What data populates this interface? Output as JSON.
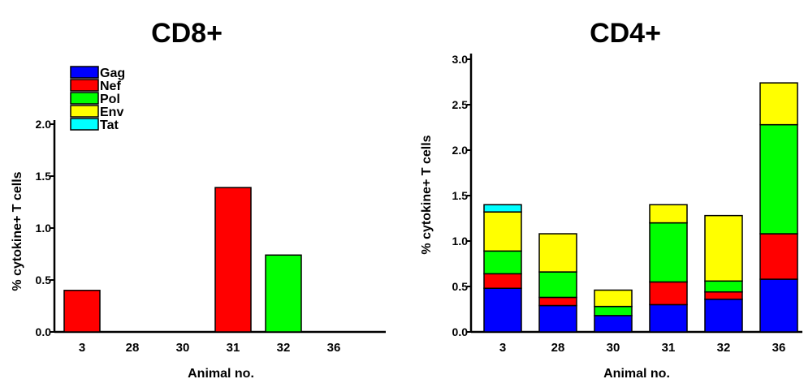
{
  "chart_data": [
    {
      "type": "bar",
      "title": "CD8+",
      "xlabel": "Animal no.",
      "ylabel": "% cytokine+ T cells",
      "ylim": [
        0,
        2.0
      ],
      "yticks": [
        "0.0",
        "0.5",
        "1.0",
        "1.5",
        "2.0"
      ],
      "categories": [
        "3",
        "28",
        "30",
        "31",
        "32",
        "36"
      ],
      "stacked": true,
      "legend_position": "top-left",
      "series": [
        {
          "name": "Gag",
          "color": "#0000ff",
          "values": [
            0,
            0,
            0,
            0,
            0,
            0
          ]
        },
        {
          "name": "Nef",
          "color": "#ff0000",
          "values": [
            0.4,
            0,
            0,
            1.39,
            0,
            0
          ]
        },
        {
          "name": "Pol",
          "color": "#00ff00",
          "values": [
            0,
            0,
            0,
            0,
            0.74,
            0
          ]
        },
        {
          "name": "Env",
          "color": "#ffff00",
          "values": [
            0,
            0,
            0,
            0,
            0,
            0
          ]
        },
        {
          "name": "Tat",
          "color": "#00ffff",
          "values": [
            0,
            0,
            0,
            0,
            0,
            0
          ]
        }
      ]
    },
    {
      "type": "bar",
      "title": "CD4+",
      "xlabel": "Animal no.",
      "ylabel": "% cytokine+ T cells",
      "ylim": [
        0,
        3.0
      ],
      "yticks": [
        "0.0",
        "0.5",
        "1.0",
        "1.5",
        "2.0",
        "2.5",
        "3.0"
      ],
      "categories": [
        "3",
        "28",
        "30",
        "31",
        "32",
        "36"
      ],
      "stacked": true,
      "series": [
        {
          "name": "Gag",
          "color": "#0000ff",
          "values": [
            0.48,
            0.29,
            0.18,
            0.3,
            0.36,
            0.58
          ]
        },
        {
          "name": "Nef",
          "color": "#ff0000",
          "values": [
            0.16,
            0.09,
            0,
            0.25,
            0.08,
            0.5
          ]
        },
        {
          "name": "Pol",
          "color": "#00ff00",
          "values": [
            0.25,
            0.28,
            0.1,
            0.65,
            0.12,
            1.2
          ]
        },
        {
          "name": "Env",
          "color": "#ffff00",
          "values": [
            0.43,
            0.42,
            0.18,
            0.2,
            0.72,
            0.46
          ]
        },
        {
          "name": "Tat",
          "color": "#00ffff",
          "values": [
            0.08,
            0,
            0,
            0,
            0,
            0
          ]
        }
      ]
    }
  ]
}
